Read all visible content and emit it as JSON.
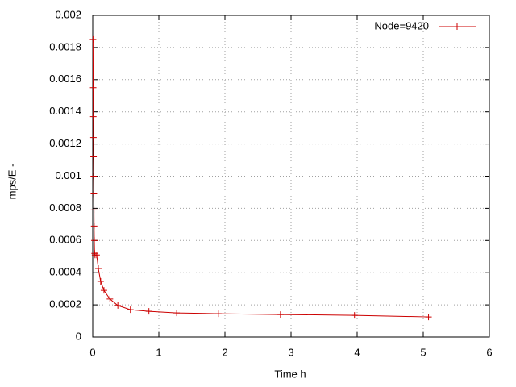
{
  "chart_data": {
    "type": "line",
    "xlabel": "Time h",
    "ylabel": "mps/E -",
    "xlim": [
      0,
      6
    ],
    "xticks": [
      0,
      1,
      2,
      3,
      4,
      5,
      6
    ],
    "ylim": [
      0,
      0.002
    ],
    "yticks": [
      0,
      0.0002,
      0.0004,
      0.0006,
      0.0008,
      0.001,
      0.0012,
      0.0014,
      0.0016,
      0.0018,
      0.002
    ],
    "grid": true,
    "legend": "top-right",
    "series": [
      {
        "name": "Node=9420",
        "color": "#cc0000",
        "x": [
          0.005,
          0.007,
          0.009,
          0.011,
          0.013,
          0.015,
          0.017,
          0.019,
          0.021,
          0.024,
          0.028,
          0.035,
          0.06,
          0.085,
          0.12,
          0.17,
          0.26,
          0.38,
          0.57,
          0.85,
          1.27,
          1.9,
          2.84,
          3.96,
          5.08
        ],
        "values": [
          0.00185,
          0.00155,
          0.00137,
          0.00124,
          0.00112,
          0.001,
          0.00089,
          0.00079,
          0.00069,
          0.0006,
          0.00052,
          0.00051,
          0.00051,
          0.000426,
          0.000346,
          0.00029,
          0.000236,
          0.000196,
          0.00017,
          0.00016,
          0.00015,
          0.000145,
          0.00014,
          0.000135,
          0.000125
        ]
      }
    ]
  }
}
